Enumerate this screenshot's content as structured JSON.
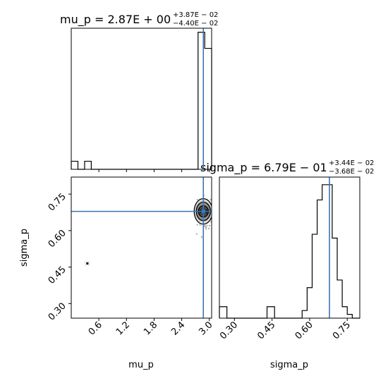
{
  "chart_data": {
    "type": "corner",
    "parameters": [
      "mu_p",
      "sigma_p"
    ],
    "colors": {
      "truth": "#3b75af",
      "hist": "#000000"
    },
    "panels": {
      "mu_p_hist": {
        "type": "histogram",
        "title": {
          "main": "mu_p = 2.87E + 00",
          "sup": "+3.87E − 02",
          "sub": "−4.40E − 02"
        },
        "xlim": [
          0.0,
          3.05
        ],
        "truth": 2.87,
        "bins": [
          {
            "x0": 0.0,
            "x1": 0.145,
            "count": 1
          },
          {
            "x0": 0.145,
            "x1": 0.29,
            "count": 0
          },
          {
            "x0": 0.29,
            "x1": 0.435,
            "count": 1
          },
          {
            "x0": 0.435,
            "x1": 2.755,
            "count": 0
          },
          {
            "x0": 2.755,
            "x1": 2.9,
            "count": 17
          },
          {
            "x0": 2.9,
            "x1": 3.05,
            "count": 15
          }
        ],
        "ymax": 17.5
      },
      "sigma_p_hist": {
        "type": "histogram",
        "title": {
          "main": "sigma_p = 6.79E − 01",
          "sup": "+3.44E − 02",
          "sub": "−3.68E − 02"
        },
        "xlim": [
          0.24,
          0.8
        ],
        "truth": 0.679,
        "bins": [
          {
            "x0": 0.24,
            "x1": 0.27,
            "count": 3
          },
          {
            "x0": 0.27,
            "x1": 0.43,
            "count": 0
          },
          {
            "x0": 0.43,
            "x1": 0.46,
            "count": 3
          },
          {
            "x0": 0.46,
            "x1": 0.57,
            "count": 0
          },
          {
            "x0": 0.57,
            "x1": 0.59,
            "count": 2
          },
          {
            "x0": 0.59,
            "x1": 0.61,
            "count": 8
          },
          {
            "x0": 0.61,
            "x1": 0.63,
            "count": 22
          },
          {
            "x0": 0.63,
            "x1": 0.65,
            "count": 31
          },
          {
            "x0": 0.65,
            "x1": 0.67,
            "count": 35
          },
          {
            "x0": 0.67,
            "x1": 0.69,
            "count": 35
          },
          {
            "x0": 0.69,
            "x1": 0.71,
            "count": 21
          },
          {
            "x0": 0.71,
            "x1": 0.73,
            "count": 10
          },
          {
            "x0": 0.73,
            "x1": 0.75,
            "count": 3
          },
          {
            "x0": 0.75,
            "x1": 0.77,
            "count": 1
          },
          {
            "x0": 0.77,
            "x1": 0.8,
            "count": 0
          }
        ],
        "ymax": 37,
        "xticks": [
          "0.30",
          "0.45",
          "0.60",
          "0.75"
        ],
        "xlabel": "sigma_p"
      },
      "joint": {
        "type": "scatter-density",
        "xlim": [
          0.0,
          3.05
        ],
        "ylim": [
          0.24,
          0.82
        ],
        "truth": {
          "x": 2.87,
          "y": 0.679
        },
        "cluster": {
          "x": 2.87,
          "y": 0.679
        },
        "outlier": {
          "x": 0.35,
          "y": 0.465
        },
        "xticks": [
          "0.6",
          "1.2",
          "1.8",
          "2.4",
          "3.0"
        ],
        "yticks": [
          "0.30",
          "0.45",
          "0.60",
          "0.75"
        ],
        "xlabel": "mu_p",
        "ylabel": "sigma_p"
      }
    }
  }
}
